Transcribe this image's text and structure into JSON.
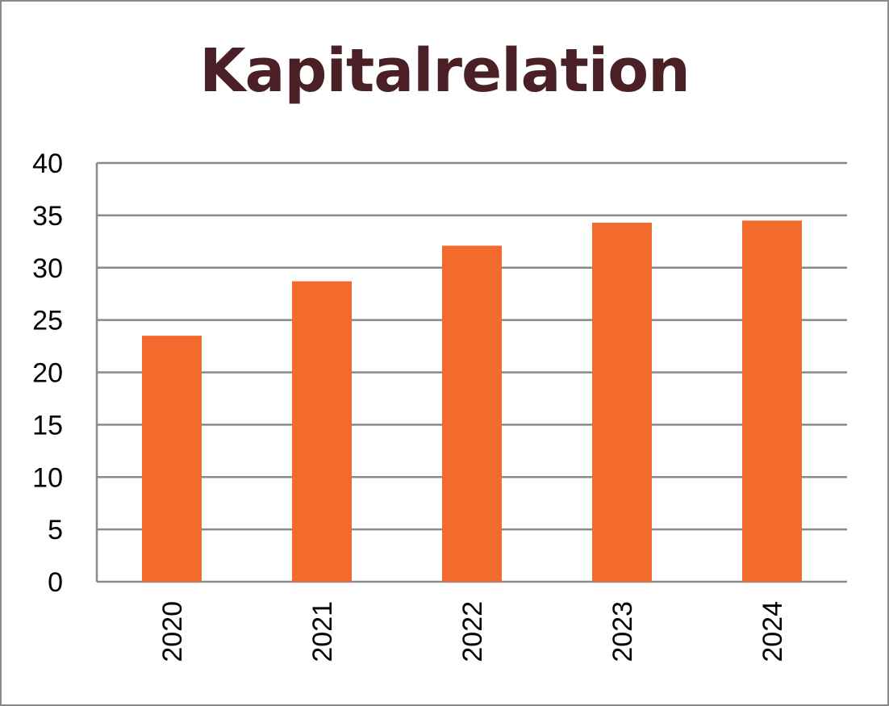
{
  "chart_data": {
    "type": "bar",
    "title": "Kapitalrelation",
    "xlabel": "",
    "ylabel": "",
    "categories": [
      "2020",
      "2021",
      "2022",
      "2023",
      "2024"
    ],
    "values": [
      23.5,
      28.7,
      32.1,
      34.3,
      34.5
    ],
    "ylim": [
      0,
      40
    ],
    "yticks": [
      "0",
      "5",
      "10",
      "15",
      "20",
      "25",
      "30",
      "35",
      "40"
    ],
    "grid": true,
    "legend": "none",
    "colors": {
      "bar": "#f26b2d",
      "grid": "#8a8a8a",
      "title": "#4a1f26"
    }
  }
}
